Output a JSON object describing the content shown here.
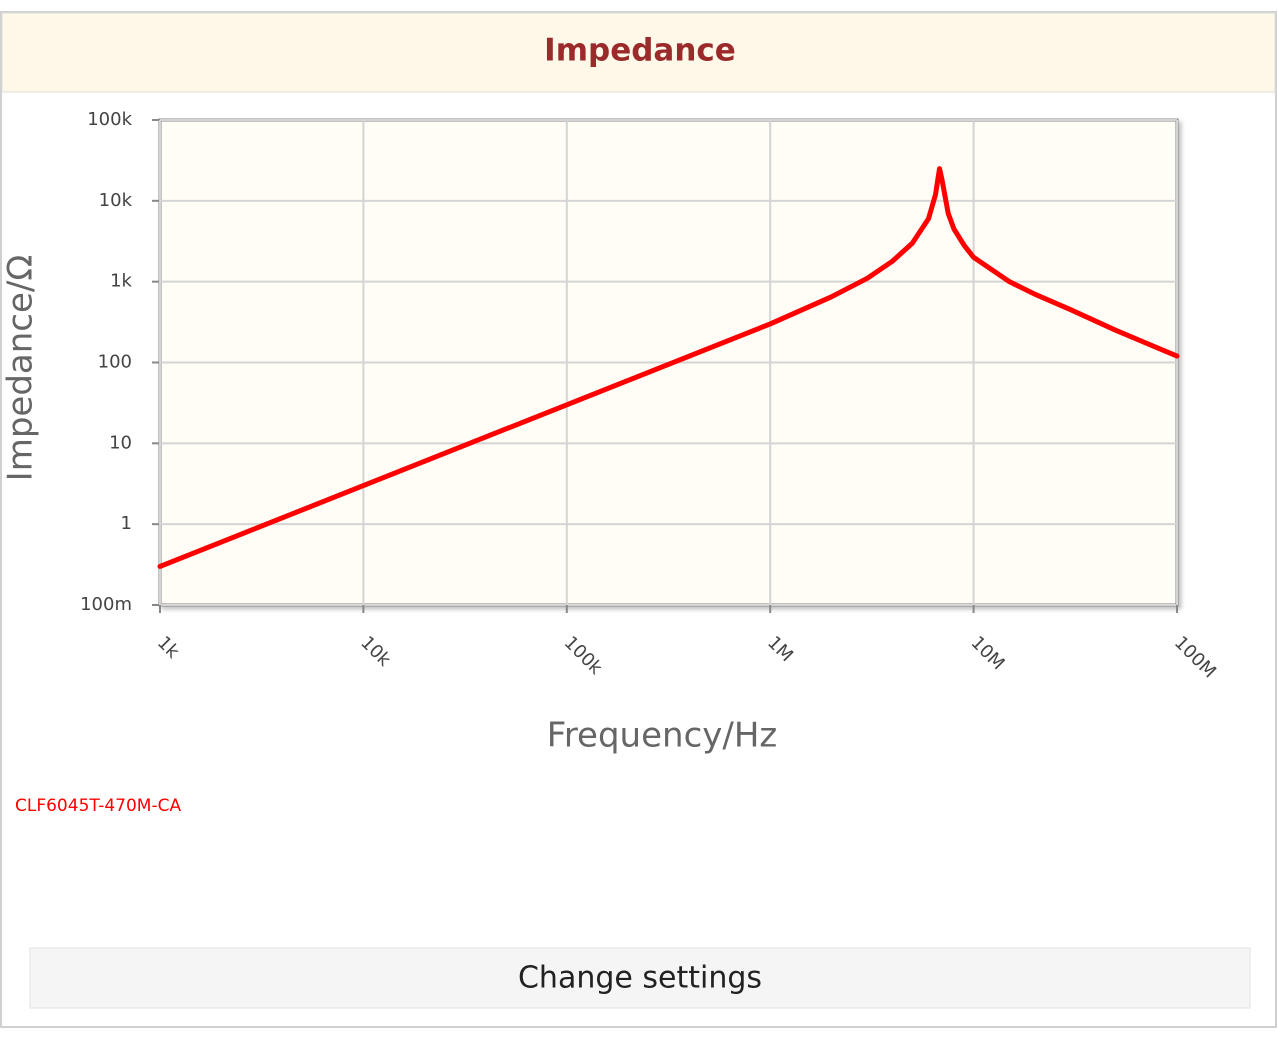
{
  "chart_data": {
    "type": "line",
    "title": "Impedance",
    "x_label": "Frequency/Hz",
    "y_label": "Impedance/Ω",
    "x_log": true,
    "y_log": true,
    "grid": true,
    "legend": "bottom-left",
    "xlim": [
      1000,
      100000000
    ],
    "ylim": [
      0.1,
      100000
    ],
    "xticks": [
      {
        "value": 1000,
        "label": "1k"
      },
      {
        "value": 10000,
        "label": "10k"
      },
      {
        "value": 100000,
        "label": "100k"
      },
      {
        "value": 1000000,
        "label": "1M"
      },
      {
        "value": 10000000,
        "label": "10M"
      },
      {
        "value": 100000000,
        "label": "100M"
      }
    ],
    "yticks": [
      {
        "value": 100000,
        "label": "100k"
      },
      {
        "value": 10000,
        "label": "10k"
      },
      {
        "value": 1000,
        "label": "1k"
      },
      100,
      10,
      1,
      {
        "value": 0.1,
        "label": "100m"
      }
    ],
    "x": [
      1000,
      10000,
      100000,
      1000000,
      2000000,
      3000000,
      4000000,
      5000000,
      6000000,
      6500000,
      6800000,
      7000000,
      7500000,
      8000000,
      9000000,
      10000000,
      15000000,
      20000000,
      30000000,
      50000000,
      100000000
    ],
    "series": [
      {
        "name": "CLF6045T-470M-CA",
        "color": "#ff0000",
        "values": [
          0.3,
          3,
          30,
          300,
          650,
          1100,
          1800,
          3000,
          6000,
          12000,
          25000,
          18000,
          7000,
          4500,
          2800,
          2000,
          1000,
          700,
          450,
          250,
          120
        ]
      }
    ]
  },
  "button": "Change settings"
}
